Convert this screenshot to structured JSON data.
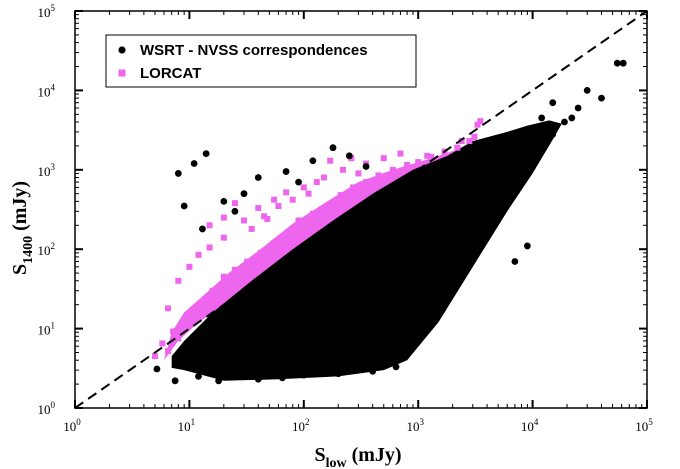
{
  "chart_data": {
    "type": "scatter",
    "x_scale": "log",
    "y_scale": "log",
    "xlim": [
      1,
      100000
    ],
    "ylim": [
      1,
      100000
    ],
    "x_ticks": [
      {
        "base": "10",
        "exp": "0"
      },
      {
        "base": "10",
        "exp": "1"
      },
      {
        "base": "10",
        "exp": "2"
      },
      {
        "base": "10",
        "exp": "3"
      },
      {
        "base": "10",
        "exp": "4"
      },
      {
        "base": "10",
        "exp": "5"
      }
    ],
    "y_ticks": [
      {
        "base": "10",
        "exp": "0"
      },
      {
        "base": "10",
        "exp": "1"
      },
      {
        "base": "10",
        "exp": "2"
      },
      {
        "base": "10",
        "exp": "3"
      },
      {
        "base": "10",
        "exp": "4"
      },
      {
        "base": "10",
        "exp": "5"
      }
    ],
    "xlabel": {
      "main": "S",
      "sub": "low",
      "unit": " (mJy)"
    },
    "ylabel": {
      "main": "S",
      "sub": "1400",
      "unit": " (mJy)"
    },
    "legend_position": "top-left",
    "grid": false,
    "reference_line": {
      "style": "dashed",
      "color": "#000000",
      "from": [
        1,
        1
      ],
      "to": [
        100000,
        100000
      ]
    },
    "series": [
      {
        "name": "WSRT - NVSS correspondences",
        "marker": "circle",
        "color": "#000000",
        "points": [
          [
            5.2,
            3.1
          ],
          [
            7.5,
            2.2
          ],
          [
            9.5,
            3.6
          ],
          [
            12,
            2.5
          ],
          [
            15,
            4.8
          ],
          [
            18,
            2.2
          ],
          [
            22,
            3.6
          ],
          [
            28,
            5.2
          ],
          [
            33,
            2.6
          ],
          [
            40,
            2.3
          ],
          [
            52,
            3.9
          ],
          [
            65,
            2.4
          ],
          [
            80,
            6.5
          ],
          [
            100,
            2.6
          ],
          [
            130,
            3.4
          ],
          [
            160,
            4.1
          ],
          [
            200,
            2.7
          ],
          [
            260,
            3.1
          ],
          [
            330,
            3.4
          ],
          [
            400,
            2.9
          ],
          [
            500,
            3.6
          ],
          [
            640,
            3.3
          ],
          [
            780,
            5.5
          ],
          [
            240,
            5.2
          ],
          [
            300,
            6.2
          ],
          [
            900,
            30
          ],
          [
            1100,
            45
          ],
          [
            1500,
            60
          ],
          [
            2000,
            80
          ],
          [
            3000,
            150
          ],
          [
            7000,
            70
          ],
          [
            9000,
            110
          ],
          [
            1300,
            17
          ],
          [
            650,
            11
          ],
          [
            450,
            5.8
          ],
          [
            550,
            4.3
          ],
          [
            3500,
            1100
          ],
          [
            5000,
            1700
          ],
          [
            9000,
            2500
          ],
          [
            15000,
            2800
          ],
          [
            30000,
            10000
          ],
          [
            40000,
            8000
          ],
          [
            55000,
            22000
          ],
          [
            62000,
            22000
          ],
          [
            22000,
            4500
          ],
          [
            19000,
            4000
          ],
          [
            60,
            9
          ],
          [
            75,
            12
          ],
          [
            110,
            14
          ],
          [
            160,
            22
          ],
          [
            8,
            900
          ],
          [
            11,
            1200
          ],
          [
            14,
            1600
          ],
          [
            9,
            350
          ],
          [
            13,
            180
          ],
          [
            20,
            400
          ],
          [
            30,
            500
          ],
          [
            25,
            300
          ],
          [
            40,
            800
          ],
          [
            70,
            950
          ],
          [
            120,
            1300
          ],
          [
            180,
            1900
          ],
          [
            250,
            1500
          ],
          [
            350,
            1100
          ],
          [
            90,
            700
          ],
          [
            15000,
            7000
          ],
          [
            25000,
            6000
          ],
          [
            12000,
            4500
          ],
          [
            3000,
            200
          ],
          [
            4500,
            350
          ],
          [
            6000,
            500
          ],
          [
            2200,
            1000
          ]
        ]
      },
      {
        "name": "LORCAT",
        "marker": "square",
        "color": "#ee66ee",
        "points": [
          [
            5,
            4.5
          ],
          [
            5.8,
            6.5
          ],
          [
            6.5,
            5.2
          ],
          [
            7.2,
            9.2
          ],
          [
            8,
            7.5
          ],
          [
            9,
            12
          ],
          [
            10,
            15
          ],
          [
            13,
            20
          ],
          [
            16,
            30
          ],
          [
            20,
            45
          ],
          [
            25,
            55
          ],
          [
            32,
            70
          ],
          [
            42,
            90
          ],
          [
            55,
            120
          ],
          [
            70,
            150
          ],
          [
            90,
            230
          ],
          [
            120,
            280
          ],
          [
            160,
            350
          ],
          [
            210,
            480
          ],
          [
            270,
            600
          ],
          [
            350,
            700
          ],
          [
            450,
            850
          ],
          [
            600,
            1000
          ],
          [
            800,
            1150
          ],
          [
            1000,
            1250
          ],
          [
            1300,
            1450
          ],
          [
            1700,
            1700
          ],
          [
            2200,
            1900
          ],
          [
            2800,
            2300
          ],
          [
            3100,
            2600
          ],
          [
            3300,
            3700
          ],
          [
            3500,
            4100
          ],
          [
            10,
            60
          ],
          [
            15,
            105
          ],
          [
            20,
            140
          ],
          [
            12,
            85
          ],
          [
            8,
            40
          ],
          [
            6.5,
            18
          ],
          [
            30,
            230
          ],
          [
            55,
            420
          ],
          [
            100,
            600
          ],
          [
            25,
            380
          ],
          [
            45,
            260
          ],
          [
            70,
            520
          ],
          [
            150,
            800
          ],
          [
            220,
            1000
          ],
          [
            20,
            250
          ],
          [
            15,
            200
          ],
          [
            40,
            330
          ],
          [
            170,
            1300
          ],
          [
            260,
            1400
          ],
          [
            350,
            1200
          ],
          [
            500,
            1400
          ],
          [
            700,
            1600
          ],
          [
            2400,
            2300
          ],
          [
            1200,
            1500
          ],
          [
            80,
            420
          ],
          [
            110,
            500
          ],
          [
            60,
            350
          ],
          [
            35,
            180
          ],
          [
            48,
            240
          ],
          [
            130,
            700
          ],
          [
            300,
            900
          ]
        ]
      }
    ]
  }
}
